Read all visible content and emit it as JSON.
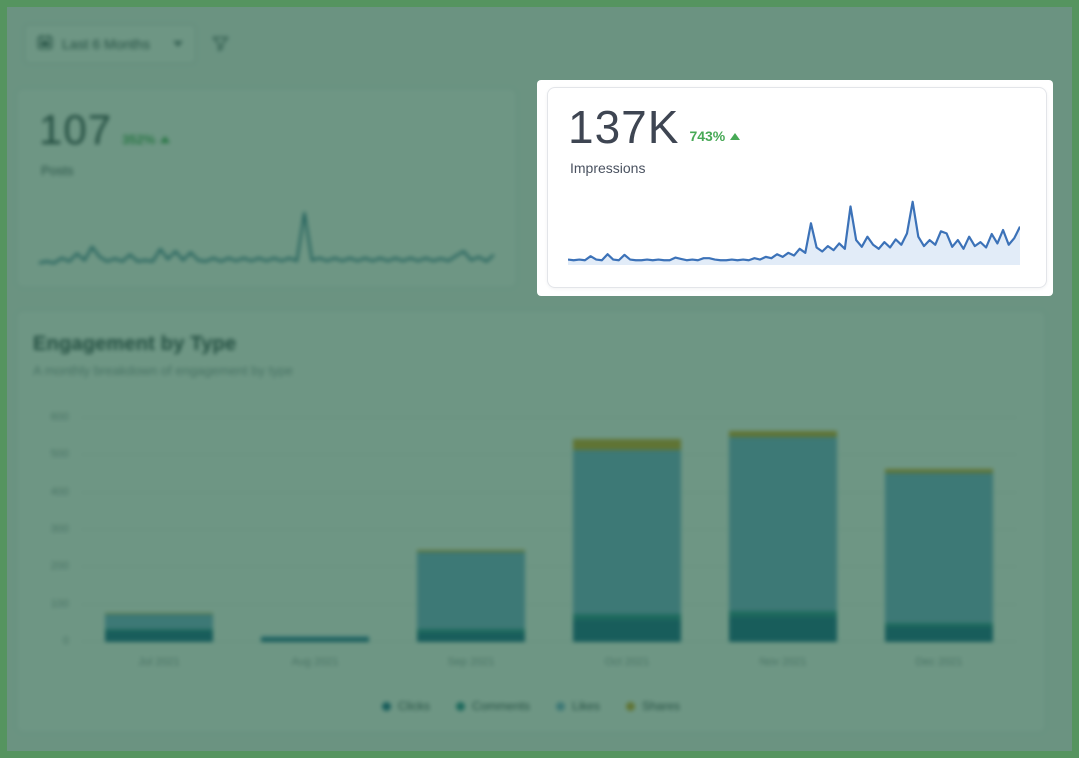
{
  "frame": {
    "border_color": "#55945f",
    "overlay_color": "rgba(21,85,57,0.62)"
  },
  "toolbar": {
    "date_range_label": "Last 6 Months",
    "calendar_icon": "calendar",
    "chevron_icon": "chevron-down",
    "filter_icon": "funnel"
  },
  "stat_cards": {
    "posts": {
      "value": "107",
      "delta": "352%",
      "delta_direction": "up",
      "label": "Posts",
      "line_color": "#2e6f92"
    },
    "impressions": {
      "value": "137K",
      "delta": "743%",
      "delta_direction": "up",
      "label": "Impressions",
      "line_color": "#3c72b8",
      "fill_color": "#d8e5f5"
    }
  },
  "engagement": {
    "title": "Engagement by Type",
    "subtitle": "A monthly breakdown of engagement by type"
  },
  "colors": {
    "delta_green": "#47a956",
    "value_text": "#3e4552",
    "axis_text": "#9aa1a9",
    "grid_line": "#ebedee"
  },
  "chart_data": [
    {
      "id": "posts_sparkline",
      "type": "line",
      "title": "Posts trend sparkline",
      "ylim": [
        0,
        100
      ],
      "values": [
        5,
        8,
        5,
        14,
        8,
        22,
        10,
        34,
        16,
        8,
        13,
        8,
        20,
        8,
        10,
        8,
        30,
        12,
        26,
        10,
        24,
        10,
        8,
        14,
        8,
        14,
        9,
        14,
        9,
        14,
        9,
        14,
        9,
        14,
        9,
        95,
        10,
        14,
        9,
        14,
        9,
        14,
        9,
        14,
        9,
        14,
        9,
        14,
        9,
        14,
        9,
        14,
        9,
        13,
        9,
        18,
        26,
        10,
        16,
        8,
        20
      ]
    },
    {
      "id": "impressions_sparkline",
      "type": "area",
      "title": "Impressions trend sparkline",
      "ylim": [
        0,
        100
      ],
      "values": [
        6,
        5,
        6,
        5,
        11,
        6,
        5,
        14,
        6,
        5,
        13,
        6,
        5,
        5,
        6,
        5,
        6,
        5,
        5,
        9,
        7,
        5,
        6,
        5,
        8,
        8,
        6,
        5,
        5,
        6,
        5,
        6,
        5,
        8,
        6,
        10,
        8,
        14,
        10,
        16,
        12,
        22,
        16,
        60,
        24,
        18,
        26,
        20,
        30,
        22,
        85,
        35,
        25,
        40,
        28,
        22,
        32,
        24,
        36,
        28,
        45,
        92,
        40,
        26,
        35,
        28,
        48,
        45,
        25,
        35,
        22,
        40,
        26,
        32,
        24,
        44,
        30,
        50,
        28,
        38,
        55
      ]
    },
    {
      "id": "engagement_by_type",
      "type": "bar",
      "stacked": true,
      "title": "Engagement by Type",
      "categories": [
        "Jul 2021",
        "Aug 2021",
        "Sep 2021",
        "Oct 2021",
        "Nov 2021",
        "Dec 2021"
      ],
      "series": [
        {
          "name": "Clicks",
          "color": "#1e6a94",
          "values": [
            30,
            10,
            25,
            59,
            67,
            40
          ]
        },
        {
          "name": "Comments",
          "color": "#2e8b9a",
          "values": [
            5,
            2,
            10,
            16,
            15,
            12
          ]
        },
        {
          "name": "Likes",
          "color": "#7fb2d9",
          "values": [
            40,
            3,
            205,
            440,
            467,
            401
          ]
        },
        {
          "name": "Shares",
          "color": "#d9a62e",
          "values": [
            3,
            0,
            6,
            29,
            16,
            11
          ]
        }
      ],
      "ylim": [
        0,
        600
      ],
      "yticks": [
        0,
        100,
        200,
        300,
        400,
        500,
        600
      ],
      "grid": true,
      "legend_position": "bottom"
    }
  ]
}
